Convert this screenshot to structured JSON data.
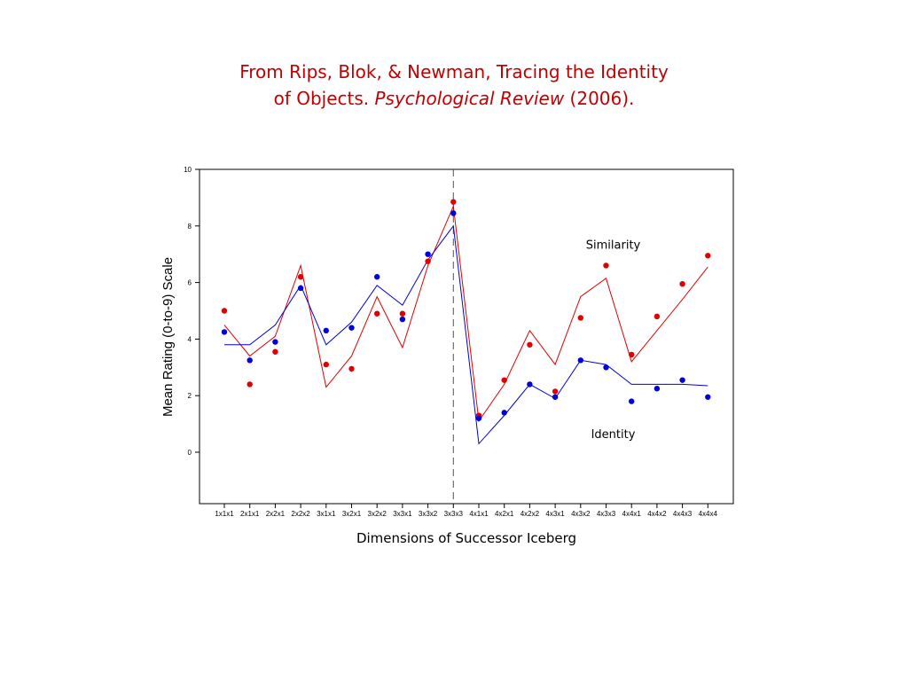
{
  "title": {
    "line1": "From Rips, Blok, & Newman, Tracing the Identity",
    "line2_plain": "of Objects. ",
    "line2_italic": "Psychological Review",
    "line2_tail": " (2006)."
  },
  "colors": {
    "title": "#c00000",
    "similarity": "#e00000",
    "identity": "#0000dd",
    "axis": "#000000",
    "divider": "#555555"
  },
  "chart_data": {
    "type": "line",
    "xlabel": "Dimensions of Successor Iceberg",
    "ylabel": "Mean Rating (0-to-9) Scale",
    "ylim": [
      -1.8,
      10
    ],
    "yticks": [
      0,
      2,
      4,
      6,
      8,
      10
    ],
    "grid": false,
    "divider_after_category": "3x3x3",
    "categories": [
      "1x1x1",
      "2x1x1",
      "2x2x1",
      "2x2x2",
      "3x1x1",
      "3x2x1",
      "3x2x2",
      "3x3x1",
      "3x3x2",
      "3x3x3",
      "4x1x1",
      "4x2x1",
      "4x2x2",
      "4x3x1",
      "4x3x2",
      "4x3x3",
      "4x4x1",
      "4x4x2",
      "4x4x3",
      "4x4x4"
    ],
    "annotations": [
      {
        "text": "Similarity",
        "x_category": "4x3x3",
        "y": 7.2
      },
      {
        "text": "Identity",
        "x_category": "4x3x3",
        "y": 0.5
      }
    ],
    "series": [
      {
        "name": "Similarity",
        "points": [
          5.0,
          2.4,
          3.55,
          6.2,
          3.1,
          2.95,
          4.9,
          4.9,
          6.75,
          8.85,
          1.3,
          2.55,
          3.8,
          2.15,
          4.75,
          6.6,
          3.45,
          4.8,
          5.95,
          6.95
        ],
        "fit": [
          4.5,
          3.4,
          4.1,
          6.6,
          2.3,
          3.4,
          5.5,
          3.7,
          6.6,
          8.7,
          1.1,
          2.4,
          4.3,
          3.1,
          5.5,
          6.15,
          3.2,
          4.3,
          5.4,
          6.55
        ]
      },
      {
        "name": "Identity",
        "points": [
          4.25,
          3.25,
          3.9,
          5.8,
          4.3,
          4.4,
          6.2,
          4.7,
          7.0,
          8.45,
          1.2,
          1.4,
          2.4,
          1.95,
          3.25,
          3.0,
          1.8,
          2.25,
          2.55,
          1.95
        ],
        "fit": [
          3.8,
          3.8,
          4.5,
          5.9,
          3.8,
          4.6,
          5.9,
          5.2,
          6.8,
          8.0,
          0.3,
          1.3,
          2.4,
          1.9,
          3.25,
          3.1,
          2.4,
          2.4,
          2.4,
          2.35
        ]
      }
    ]
  }
}
